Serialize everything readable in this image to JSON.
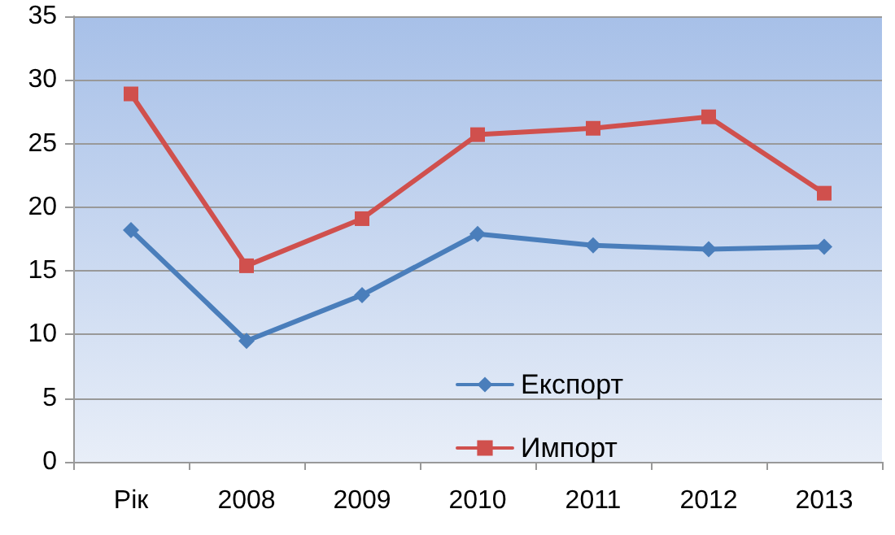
{
  "chart_data": {
    "type": "line",
    "categories": [
      "Рік",
      "2008",
      "2009",
      "2010",
      "2011",
      "2012",
      "2013"
    ],
    "series": [
      {
        "name": "Експорт",
        "color": "#4a7ebb",
        "marker": "diamond",
        "values": [
          18.2,
          9.5,
          13.1,
          17.9,
          17.0,
          16.7,
          16.9
        ]
      },
      {
        "name": "Импорт",
        "color": "#d0504d",
        "marker": "square",
        "values": [
          28.9,
          15.4,
          19.1,
          25.7,
          26.2,
          27.1,
          21.1
        ]
      }
    ],
    "ylim": [
      0,
      35
    ],
    "yticks": [
      0,
      5,
      10,
      15,
      20,
      25,
      30,
      35
    ],
    "grid": "y",
    "legend": "bottom right",
    "line_style": "solid"
  }
}
